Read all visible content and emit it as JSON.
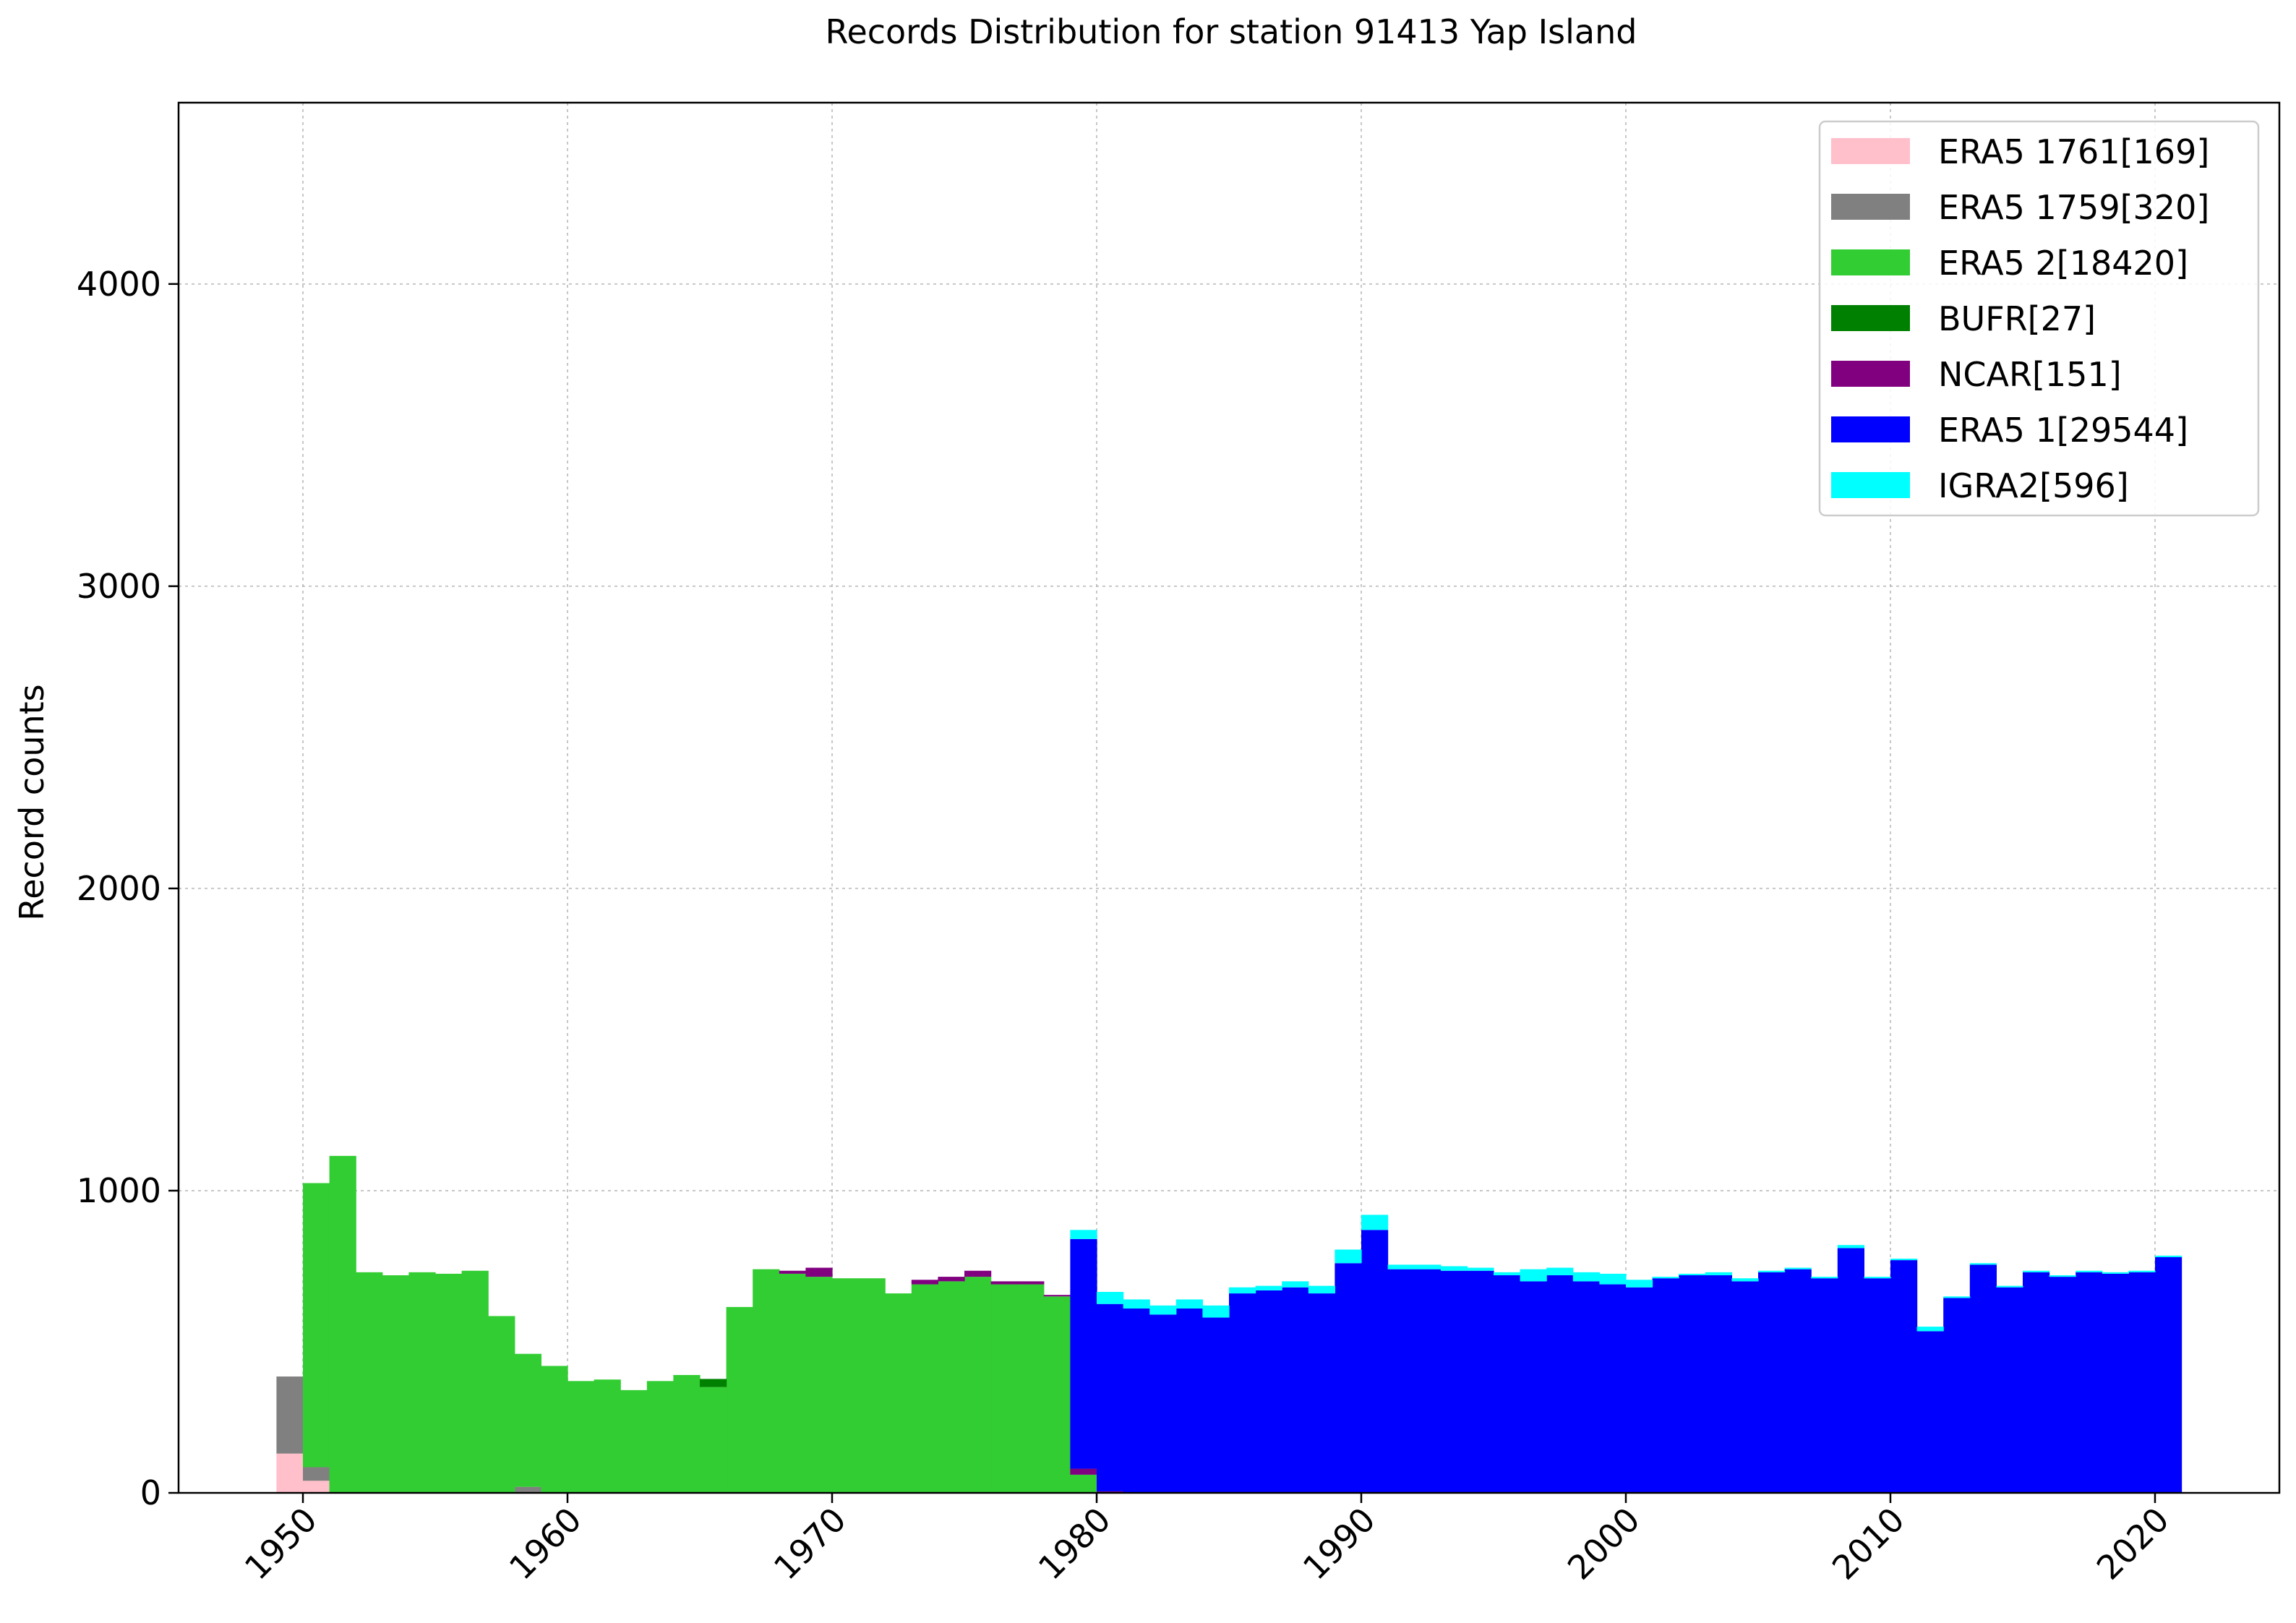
{
  "chart_data": {
    "type": "bar",
    "stacked": true,
    "title": "Records Distribution for station 91413 Yap Island",
    "xlabel": "",
    "ylabel": "Record counts",
    "xlim": [
      1945.3,
      2024.7
    ],
    "ylim": [
      0,
      4600
    ],
    "x_ticks": [
      1950,
      1960,
      1970,
      1980,
      1990,
      2000,
      2010,
      2020
    ],
    "x_tick_labels": [
      "1950",
      "1960",
      "1970",
      "1980",
      "1990",
      "2000",
      "2010",
      "2020"
    ],
    "x_tick_rotation": 45,
    "y_ticks": [
      0,
      1000,
      2000,
      3000,
      4000
    ],
    "y_tick_labels": [
      "0",
      "1000",
      "2000",
      "3000",
      "4000"
    ],
    "grid": true,
    "legend_position": "top-right",
    "bin_width": 1,
    "x": [
      1949,
      1950,
      1951,
      1952,
      1953,
      1954,
      1955,
      1956,
      1957,
      1958,
      1959,
      1960,
      1961,
      1962,
      1963,
      1964,
      1965,
      1966,
      1967,
      1968,
      1969,
      1970,
      1971,
      1972,
      1973,
      1974,
      1975,
      1976,
      1977,
      1978,
      1979,
      1980,
      1981,
      1982,
      1983,
      1984,
      1985,
      1986,
      1987,
      1988,
      1989,
      1990,
      1991,
      1992,
      1993,
      1994,
      1995,
      1996,
      1997,
      1998,
      1999,
      2000,
      2001,
      2002,
      2003,
      2004,
      2005,
      2006,
      2007,
      2008,
      2009,
      2010,
      2011,
      2012,
      2013,
      2014,
      2015,
      2016,
      2017,
      2018,
      2019,
      2020
    ],
    "series": [
      {
        "name": "ERA5 1761[169]",
        "color": "#ffc0cb",
        "values": [
          130,
          40,
          0,
          0,
          0,
          0,
          0,
          0,
          0,
          0,
          0,
          0,
          0,
          0,
          0,
          0,
          0,
          0,
          0,
          0,
          0,
          0,
          0,
          0,
          0,
          0,
          0,
          0,
          0,
          0,
          0,
          0,
          0,
          0,
          0,
          0,
          0,
          0,
          0,
          0,
          0,
          0,
          0,
          0,
          0,
          0,
          0,
          0,
          0,
          0,
          0,
          0,
          0,
          0,
          0,
          0,
          0,
          0,
          0,
          0,
          0,
          0,
          0,
          0,
          0,
          0,
          0,
          0,
          0,
          0,
          0,
          0
        ]
      },
      {
        "name": "ERA5 1759[320]",
        "color": "#808080",
        "values": [
          255,
          45,
          0,
          0,
          0,
          0,
          0,
          0,
          0,
          20,
          0,
          0,
          0,
          0,
          0,
          0,
          0,
          0,
          0,
          0,
          0,
          0,
          0,
          0,
          0,
          0,
          0,
          0,
          0,
          0,
          0,
          0,
          0,
          0,
          0,
          0,
          0,
          0,
          0,
          0,
          0,
          0,
          0,
          0,
          0,
          0,
          0,
          0,
          0,
          0,
          0,
          0,
          0,
          0,
          0,
          0,
          0,
          0,
          0,
          0,
          0,
          0,
          0,
          0,
          0,
          0,
          0,
          0,
          0,
          0,
          0,
          0
        ]
      },
      {
        "name": "ERA5 2[18420]",
        "color": "#32cd32",
        "values": [
          0,
          940,
          1115,
          730,
          720,
          730,
          725,
          735,
          585,
          440,
          420,
          370,
          375,
          340,
          370,
          390,
          350,
          615,
          740,
          725,
          715,
          710,
          710,
          660,
          690,
          700,
          715,
          690,
          690,
          650,
          60,
          0,
          0,
          0,
          0,
          0,
          0,
          0,
          0,
          0,
          0,
          0,
          0,
          0,
          0,
          0,
          0,
          0,
          0,
          0,
          0,
          0,
          0,
          0,
          0,
          0,
          0,
          0,
          0,
          0,
          0,
          0,
          0,
          0,
          0,
          0,
          0,
          0,
          0,
          0,
          0,
          0
        ]
      },
      {
        "name": "BUFR[27]",
        "color": "#008000",
        "values": [
          0,
          0,
          0,
          0,
          0,
          0,
          0,
          0,
          0,
          0,
          0,
          0,
          0,
          0,
          0,
          0,
          27,
          0,
          0,
          0,
          0,
          0,
          0,
          0,
          0,
          0,
          0,
          0,
          0,
          0,
          0,
          0,
          0,
          0,
          0,
          0,
          0,
          0,
          0,
          0,
          0,
          0,
          0,
          0,
          0,
          0,
          0,
          0,
          0,
          0,
          0,
          0,
          0,
          0,
          0,
          0,
          0,
          0,
          0,
          0,
          0,
          0,
          0,
          0,
          0,
          0,
          0,
          0,
          0,
          0,
          0,
          0
        ]
      },
      {
        "name": "NCAR[151]",
        "color": "#800080",
        "values": [
          0,
          0,
          0,
          0,
          0,
          0,
          0,
          0,
          0,
          0,
          0,
          0,
          0,
          0,
          0,
          0,
          0,
          0,
          0,
          10,
          30,
          0,
          0,
          0,
          15,
          15,
          20,
          10,
          10,
          5,
          20,
          5,
          0,
          0,
          0,
          0,
          0,
          0,
          0,
          0,
          0,
          0,
          0,
          0,
          0,
          0,
          0,
          0,
          0,
          0,
          0,
          0,
          0,
          0,
          0,
          0,
          0,
          0,
          0,
          0,
          0,
          0,
          0,
          0,
          0,
          0,
          0,
          0,
          0,
          0,
          0,
          0
        ]
      },
      {
        "name": "ERA5 1[29544]",
        "color": "#0000ff",
        "values": [
          0,
          0,
          0,
          0,
          0,
          0,
          0,
          0,
          0,
          0,
          0,
          0,
          0,
          0,
          0,
          0,
          0,
          0,
          0,
          0,
          0,
          0,
          0,
          0,
          0,
          0,
          0,
          0,
          0,
          0,
          760,
          620,
          610,
          590,
          610,
          580,
          660,
          670,
          680,
          660,
          760,
          870,
          740,
          740,
          735,
          735,
          720,
          700,
          720,
          700,
          690,
          680,
          710,
          720,
          720,
          700,
          730,
          740,
          710,
          810,
          710,
          770,
          535,
          645,
          755,
          680,
          730,
          715,
          730,
          725,
          730,
          780
        ]
      },
      {
        "name": "IGRA2[596]",
        "color": "#00ffff",
        "values": [
          0,
          0,
          0,
          0,
          0,
          0,
          0,
          0,
          0,
          0,
          0,
          0,
          0,
          0,
          0,
          0,
          0,
          0,
          0,
          0,
          0,
          0,
          0,
          0,
          0,
          0,
          0,
          0,
          0,
          0,
          30,
          40,
          30,
          30,
          30,
          40,
          20,
          15,
          20,
          25,
          45,
          50,
          15,
          15,
          15,
          10,
          10,
          40,
          25,
          30,
          35,
          25,
          5,
          5,
          10,
          10,
          5,
          5,
          5,
          10,
          5,
          5,
          15,
          5,
          5,
          5,
          5,
          5,
          5,
          5,
          5,
          5
        ]
      }
    ]
  }
}
